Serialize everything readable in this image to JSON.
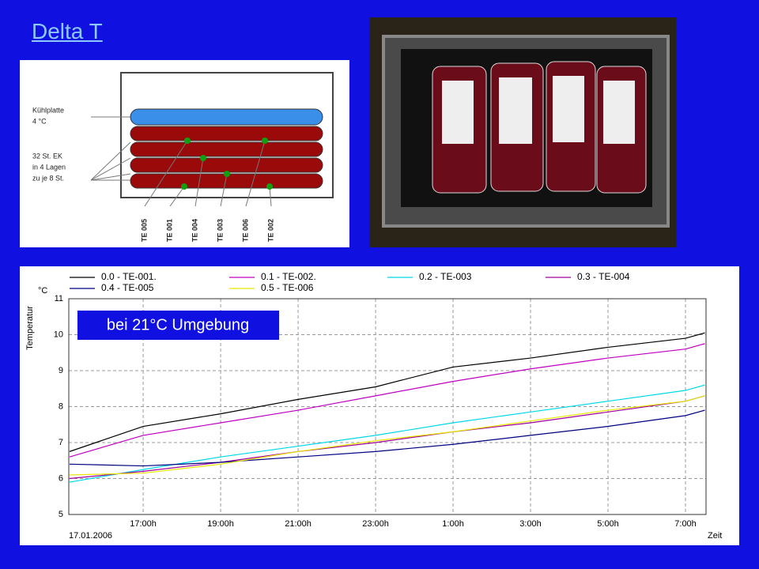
{
  "title": "Delta T",
  "diagram": {
    "labels": [
      "Kühlplatte",
      "4 °C",
      "32 St. EK",
      "in 4 Lagen",
      "zu je 8 St."
    ],
    "sensors": [
      "TE 005",
      "TE 001",
      "TE 004",
      "TE 003",
      "TE 006",
      "TE 002"
    ]
  },
  "chart_data": {
    "type": "line",
    "y_label": "Temperatur",
    "y_unit": "°C",
    "x_label": "Zeit",
    "date": "17.01.2006",
    "annotation": "bei 21°C Umgebung",
    "grid": true,
    "x": [
      15.1,
      17,
      19,
      21,
      23,
      25,
      27,
      29,
      31,
      31.5
    ],
    "xlim": [
      15.08,
      31.53
    ],
    "xticks": [
      {
        "value": 17,
        "label": "17:00h"
      },
      {
        "value": 19,
        "label": "19:00h"
      },
      {
        "value": 21,
        "label": "21:00h"
      },
      {
        "value": 23,
        "label": "23:00h"
      },
      {
        "value": 25,
        "label": "1:00h"
      },
      {
        "value": 27,
        "label": "3:00h"
      },
      {
        "value": 29,
        "label": "5:00h"
      },
      {
        "value": 31,
        "label": "7:00h"
      }
    ],
    "ylim": [
      5,
      11
    ],
    "yticks": [
      5,
      6,
      7,
      8,
      9,
      10,
      11
    ],
    "series": [
      {
        "name": "0.0 - TE-001.",
        "color": "#000000",
        "values": [
          6.75,
          7.45,
          7.8,
          8.2,
          8.55,
          9.1,
          9.35,
          9.65,
          9.9,
          10.05
        ]
      },
      {
        "name": "0.1 - TE-002.",
        "color": "#c000c0",
        "values": [
          6.6,
          7.2,
          7.55,
          7.9,
          8.3,
          8.7,
          9.05,
          9.35,
          9.6,
          9.75
        ]
      },
      {
        "name": "0.2 - TE-003",
        "color": "#00d8e8",
        "values": [
          5.9,
          6.25,
          6.6,
          6.9,
          7.2,
          7.55,
          7.85,
          8.15,
          8.45,
          8.6
        ]
      },
      {
        "name": "0.3 - TE-004",
        "color": "#a000a0",
        "values": [
          6.0,
          6.2,
          6.45,
          6.75,
          7.0,
          7.3,
          7.55,
          7.85,
          8.15,
          8.3
        ]
      },
      {
        "name": "0.4 - TE-005",
        "color": "#000080",
        "values": [
          6.4,
          6.35,
          6.45,
          6.6,
          6.75,
          6.95,
          7.2,
          7.45,
          7.75,
          7.9
        ]
      },
      {
        "name": "0.5 - TE-006",
        "color": "#e8e800",
        "values": [
          6.1,
          6.15,
          6.4,
          6.75,
          7.05,
          7.3,
          7.6,
          7.9,
          8.15,
          8.3
        ]
      }
    ]
  }
}
